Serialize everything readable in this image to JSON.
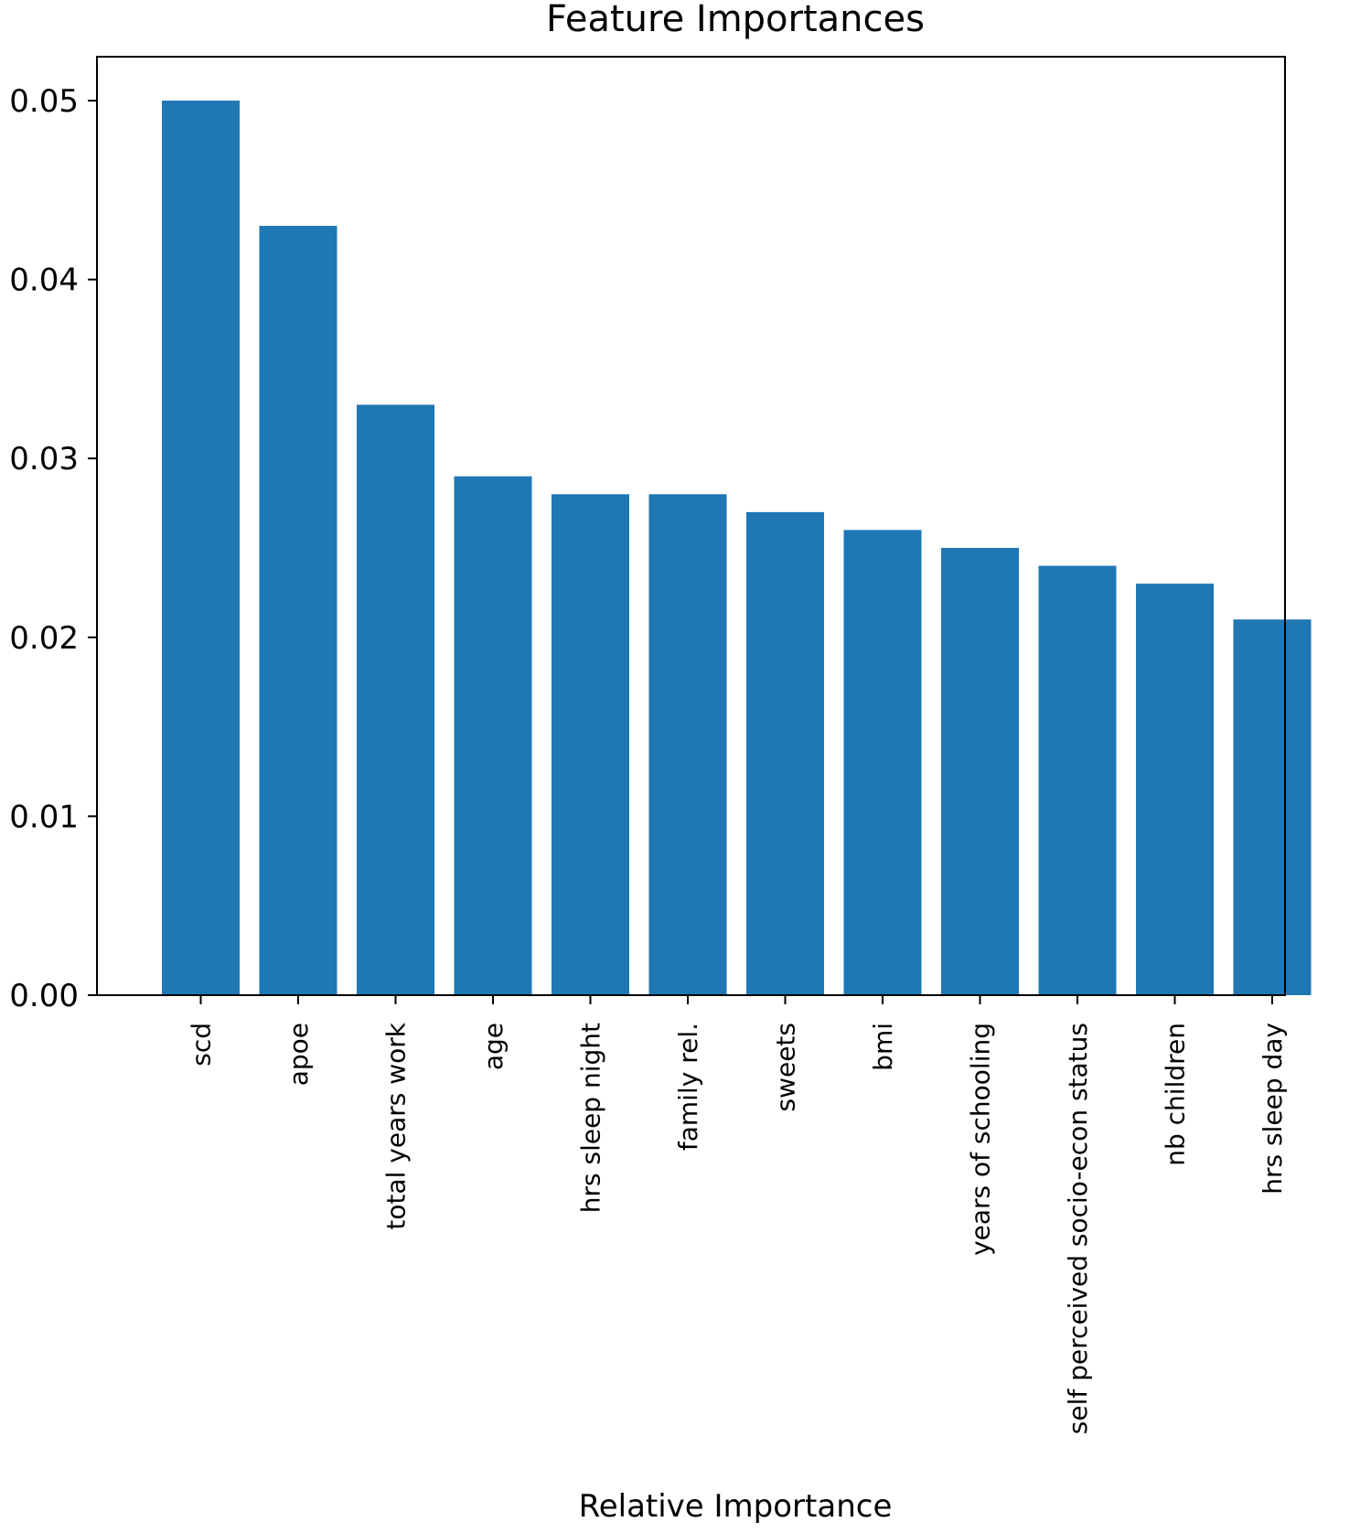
{
  "chart_data": {
    "type": "bar",
    "title": "Feature Importances",
    "xlabel": "Relative Importance",
    "ylabel": "",
    "categories": [
      "scd",
      "apoe",
      "total years work",
      "age",
      "hrs sleep night",
      "family rel.",
      "sweets",
      "bmi",
      "years of schooling",
      "self perceived socio-econ status",
      "nb children",
      "hrs sleep day"
    ],
    "values": [
      0.05,
      0.043,
      0.033,
      0.029,
      0.028,
      0.028,
      0.027,
      0.026,
      0.025,
      0.024,
      0.023,
      0.021
    ],
    "ylim": [
      0,
      0.0525
    ],
    "yticks": [
      0.0,
      0.01,
      0.02,
      0.03,
      0.04,
      0.05
    ],
    "ytick_labels": [
      "0.00",
      "0.01",
      "0.02",
      "0.03",
      "0.04",
      "0.05"
    ],
    "bar_color": "#1f77b4",
    "grid": false,
    "legend": "none"
  }
}
